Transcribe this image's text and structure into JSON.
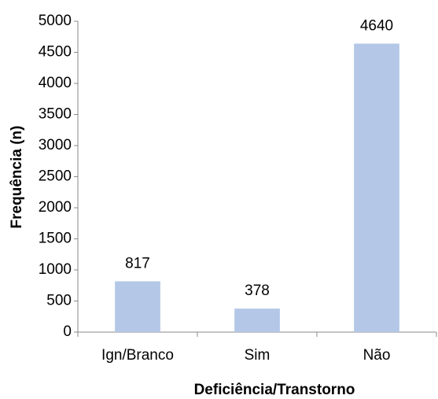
{
  "chart_data": {
    "type": "bar",
    "x_label": "Deficiência/Transtorno",
    "y_label": "Frequência (n)",
    "categories": [
      "Ign/Branco",
      "Sim",
      "Não"
    ],
    "values": [
      817,
      378,
      4640
    ],
    "color": "#b4c7e7",
    "ylim": [
      0,
      5000
    ],
    "yticks": [
      0,
      500,
      1000,
      1500,
      2000,
      2500,
      3000,
      3500,
      4000,
      4500,
      5000
    ],
    "grid": false
  }
}
